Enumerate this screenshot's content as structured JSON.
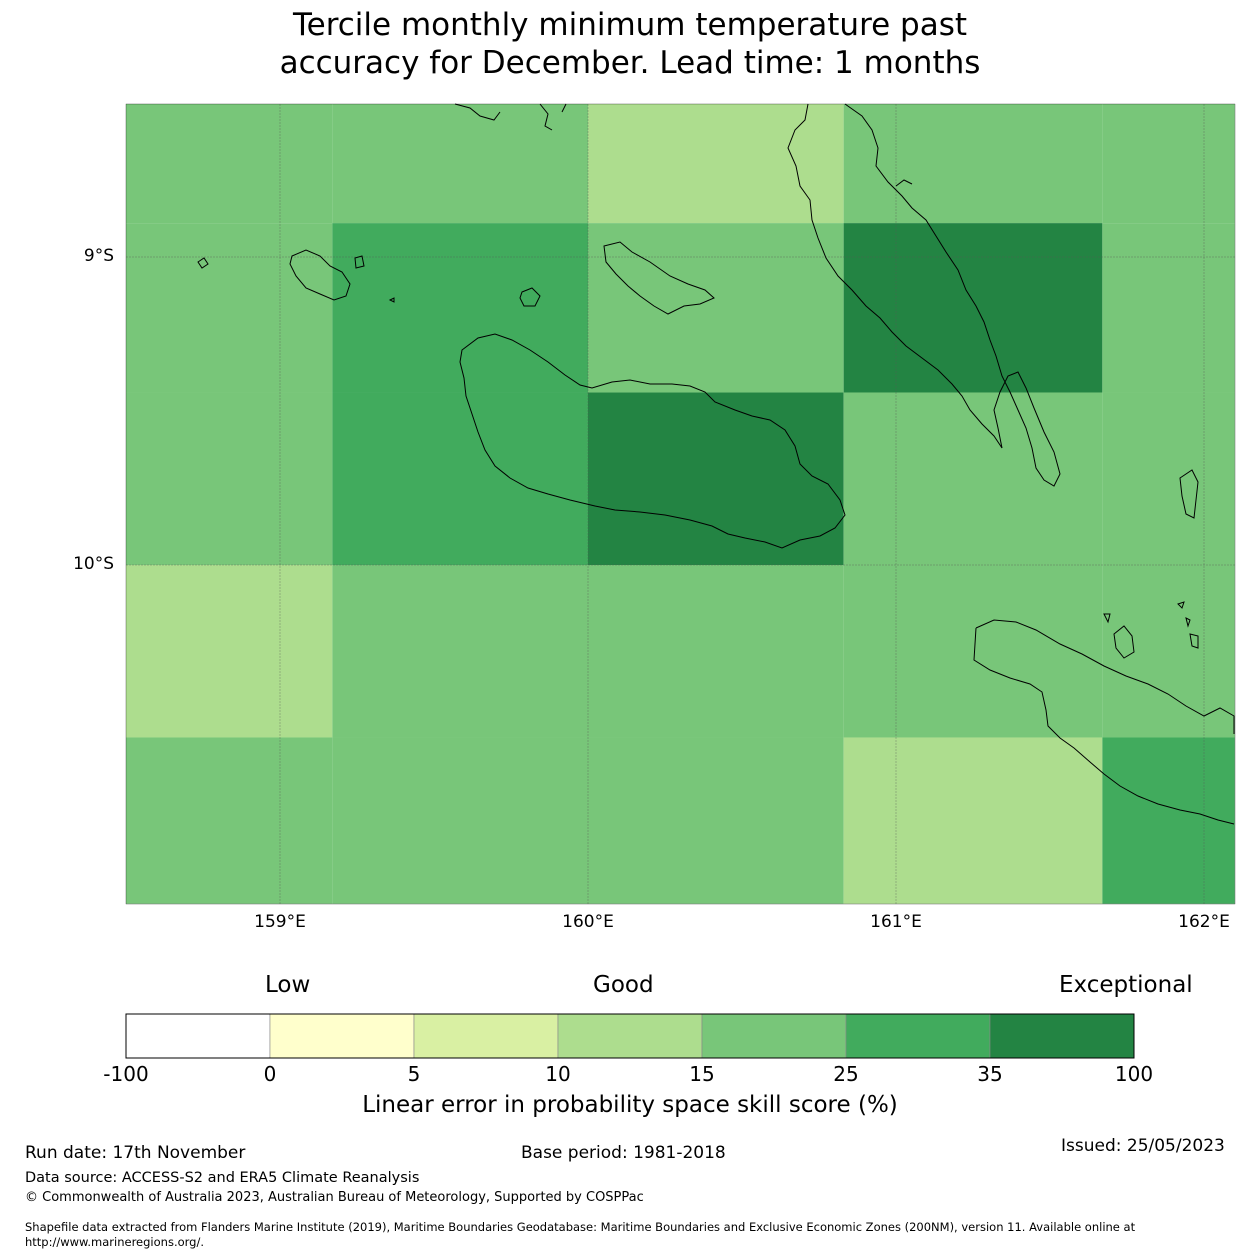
{
  "title_line1": "Tercile monthly minimum temperature past",
  "title_line2": "accuracy for December. Lead time: 1 months",
  "chart_data": {
    "type": "heatmap",
    "title": "Tercile monthly minimum temperature past accuracy for December. Lead time: 1 months",
    "x_ticks": [
      "159°E",
      "160°E",
      "161°E",
      "162°E"
    ],
    "y_ticks": [
      "9°S",
      "10°S"
    ],
    "xlim": [
      158.5,
      162.1
    ],
    "ylim": [
      -11.1,
      -8.5
    ],
    "cell_columns_lon": [
      [
        158.5,
        159.17
      ],
      [
        159.17,
        160.0
      ],
      [
        160.0,
        160.83
      ],
      [
        160.83,
        161.67
      ],
      [
        161.67,
        162.1
      ]
    ],
    "cell_rows_lat": [
      [
        -8.5,
        -8.89
      ],
      [
        -8.89,
        -9.44
      ],
      [
        -9.44,
        -10.0
      ],
      [
        -10.0,
        -10.56
      ],
      [
        -10.56,
        -11.1
      ]
    ],
    "cells": [
      [
        "15-25",
        "15-25",
        "10-15",
        "15-25",
        "15-25"
      ],
      [
        "15-25",
        "25-35",
        "15-25",
        "35-100",
        "15-25"
      ],
      [
        "15-25",
        "25-35",
        "35-100",
        "15-25",
        "15-25"
      ],
      [
        "10-15",
        "15-25",
        "15-25",
        "15-25",
        "15-25"
      ],
      [
        "15-25",
        "15-25",
        "15-25",
        "10-15",
        "25-35"
      ]
    ],
    "colorbar": {
      "label": "Linear error in probability space skill score (%)",
      "category_words": [
        "Low",
        "Good",
        "Exceptional"
      ],
      "boundaries": [
        "-100",
        "0",
        "5",
        "10",
        "15",
        "25",
        "35",
        "100"
      ],
      "bins": [
        {
          "range": "-100-0",
          "color": "#ffffff"
        },
        {
          "range": "0-5",
          "color": "#ffffcc"
        },
        {
          "range": "5-10",
          "color": "#d9f0a3"
        },
        {
          "range": "10-15",
          "color": "#addd8e"
        },
        {
          "range": "15-25",
          "color": "#78c679"
        },
        {
          "range": "25-35",
          "color": "#41ab5d"
        },
        {
          "range": "35-100",
          "color": "#238443"
        }
      ]
    }
  },
  "footer": {
    "run_date": "Run date: 17th November",
    "base_period": "Base period: 1981-2018",
    "issued": "Issued: 25/05/2023",
    "data_source": "Data source: ACCESS-S2 and ERA5 Climate Reanalysis",
    "copyright": "© Commonwealth of Australia 2023, Australian Bureau of Meteorology, Supported by COSPPac",
    "shapefile_line1": "Shapefile data extracted from Flanders Marine Institute (2019), Maritime Boundaries Geodatabase: Maritime Boundaries and Exclusive Economic Zones (200NM), version 11. Available online at",
    "shapefile_line2": "http://www.marineregions.org/."
  }
}
